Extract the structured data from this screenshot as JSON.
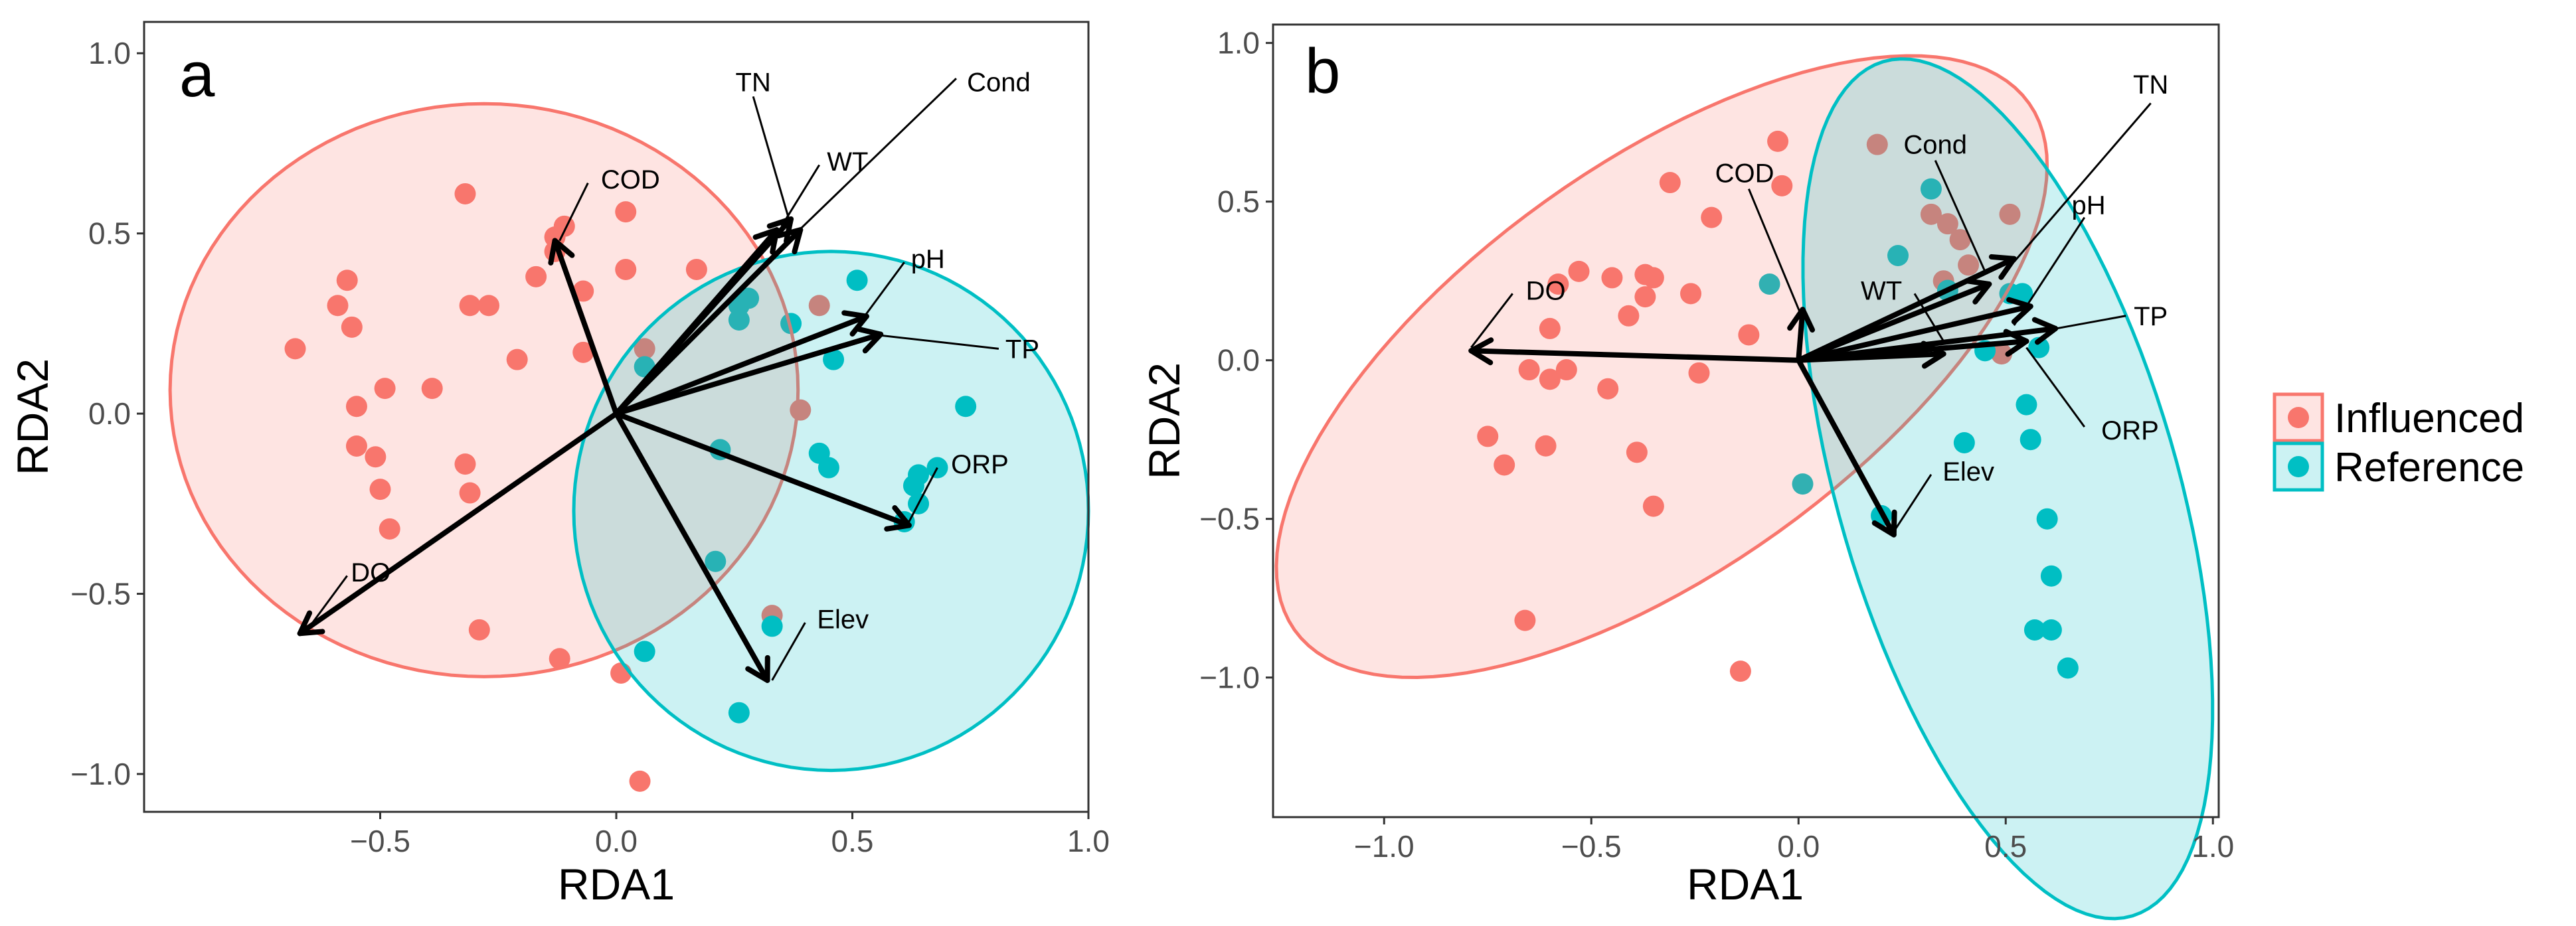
{
  "legend": {
    "items": [
      {
        "label": "Influenced",
        "color": "#F8766D"
      },
      {
        "label": "Reference",
        "color": "#00BFC4"
      }
    ]
  },
  "chart_data": [
    {
      "type": "scatter",
      "panel_label": "a",
      "xlabel": "RDA1",
      "ylabel": "RDA2",
      "xlim": [
        -1.0,
        1.0
      ],
      "ylim": [
        -1.105,
        1.087
      ],
      "grid": false,
      "xticks": [
        -0.5,
        0.0,
        0.5,
        1.0
      ],
      "xtick_labels": [
        "−0.5",
        "0.0",
        "0.5",
        "1.0"
      ],
      "yticks": [
        -1.0,
        -0.5,
        0.0,
        0.5,
        1.0
      ],
      "ytick_labels": [
        "−1.0",
        "−0.5",
        "0.0",
        "0.5",
        "1.0"
      ],
      "series": [
        {
          "name": "Influenced",
          "color": "#F8766D",
          "points": [
            [
              -0.68,
              0.18
            ],
            [
              -0.59,
              0.3
            ],
            [
              -0.57,
              0.37
            ],
            [
              -0.56,
              0.24
            ],
            [
              -0.55,
              0.02
            ],
            [
              -0.55,
              -0.09
            ],
            [
              -0.51,
              -0.12
            ],
            [
              -0.49,
              0.07
            ],
            [
              -0.5,
              -0.21
            ],
            [
              -0.48,
              -0.32
            ],
            [
              -0.39,
              0.07
            ],
            [
              -0.32,
              0.61
            ],
            [
              -0.32,
              -0.14
            ],
            [
              -0.31,
              0.3
            ],
            [
              -0.27,
              0.3
            ],
            [
              -0.31,
              -0.22
            ],
            [
              -0.29,
              -0.6
            ],
            [
              -0.21,
              0.15
            ],
            [
              -0.17,
              0.38
            ],
            [
              -0.13,
              0.49
            ],
            [
              -0.11,
              0.52
            ],
            [
              -0.13,
              0.45
            ],
            [
              -0.12,
              -0.68
            ],
            [
              -0.07,
              0.34
            ],
            [
              -0.07,
              0.17
            ],
            [
              0.02,
              0.56
            ],
            [
              0.02,
              0.4
            ],
            [
              0.01,
              -0.72
            ],
            [
              0.05,
              -1.02
            ],
            [
              0.06,
              0.18
            ],
            [
              0.17,
              0.4
            ],
            [
              0.43,
              0.3
            ],
            [
              0.39,
              0.01
            ],
            [
              0.33,
              -0.56
            ]
          ]
        },
        {
          "name": "Reference",
          "color": "#00BFC4",
          "points": [
            [
              0.06,
              0.13
            ],
            [
              0.06,
              -0.66
            ],
            [
              0.22,
              -0.1
            ],
            [
              0.21,
              -0.41
            ],
            [
              0.26,
              0.3
            ],
            [
              0.26,
              0.26
            ],
            [
              0.28,
              0.32
            ],
            [
              0.26,
              -0.83
            ],
            [
              0.37,
              0.25
            ],
            [
              0.33,
              -0.59
            ],
            [
              0.51,
              0.37
            ],
            [
              0.46,
              0.15
            ],
            [
              0.43,
              -0.11
            ],
            [
              0.45,
              -0.15
            ],
            [
              0.63,
              -0.2
            ],
            [
              0.64,
              -0.17
            ],
            [
              0.68,
              -0.15
            ],
            [
              0.64,
              -0.25
            ],
            [
              0.61,
              -0.3
            ],
            [
              0.74,
              0.02
            ]
          ]
        }
      ],
      "ellipses": [
        {
          "group": "Influenced",
          "color": "#F8766D",
          "center": [
            -0.28,
            0.065
          ],
          "a": 0.665,
          "b": 0.795,
          "angle_deg": 0
        },
        {
          "group": "Reference",
          "color": "#00BFC4",
          "center": [
            0.455,
            -0.27
          ],
          "a": 0.545,
          "b": 0.72,
          "angle_deg": 0
        }
      ],
      "arrows": [
        {
          "label": "TN",
          "tip": [
            0.37,
            0.54
          ],
          "label_pos": [
            0.29,
            0.92
          ],
          "leader": [
            [
              0.29,
              0.88
            ],
            [
              0.37,
              0.52
            ]
          ]
        },
        {
          "label": "WT",
          "tip": [
            0.34,
            0.51
          ],
          "label_pos": [
            0.49,
            0.7
          ],
          "leader": [
            [
              0.43,
              0.69
            ],
            [
              0.35,
              0.52
            ]
          ]
        },
        {
          "label": "Cond",
          "tip": [
            0.39,
            0.51
          ],
          "label_pos": [
            0.81,
            0.92
          ],
          "leader": [
            [
              0.72,
              0.93
            ],
            [
              0.38,
              0.5
            ]
          ]
        },
        {
          "label": "COD",
          "tip": [
            -0.13,
            0.48
          ],
          "label_pos": [
            0.03,
            0.65
          ],
          "leader": [
            [
              -0.06,
              0.64
            ],
            [
              -0.12,
              0.48
            ]
          ]
        },
        {
          "label": "pH",
          "tip": [
            0.53,
            0.27
          ],
          "label_pos": [
            0.66,
            0.43
          ],
          "leader": [
            [
              0.61,
              0.42
            ],
            [
              0.52,
              0.26
            ]
          ]
        },
        {
          "label": "TP",
          "tip": [
            0.56,
            0.22
          ],
          "label_pos": [
            0.86,
            0.18
          ],
          "leader": [
            [
              0.81,
              0.18
            ],
            [
              0.54,
              0.22
            ]
          ]
        },
        {
          "label": "ORP",
          "tip": [
            0.62,
            -0.31
          ],
          "label_pos": [
            0.77,
            -0.14
          ],
          "leader": [
            [
              0.68,
              -0.15
            ],
            [
              0.62,
              -0.3
            ]
          ]
        },
        {
          "label": "DO",
          "tip": [
            -0.67,
            -0.61
          ],
          "label_pos": [
            -0.52,
            -0.44
          ],
          "leader": [
            [
              -0.57,
              -0.45
            ],
            [
              -0.66,
              -0.61
            ]
          ]
        },
        {
          "label": "Elev",
          "tip": [
            0.32,
            -0.74
          ],
          "label_pos": [
            0.48,
            -0.57
          ],
          "leader": [
            [
              0.4,
              -0.58
            ],
            [
              0.33,
              -0.74
            ]
          ]
        }
      ]
    },
    {
      "type": "scatter",
      "panel_label": "b",
      "xlabel": "RDA1",
      "ylabel": "RDA2",
      "xlim": [
        -1.268,
        1.014
      ],
      "ylim": [
        -1.44,
        1.058
      ],
      "grid": false,
      "xticks": [
        -1.0,
        -0.5,
        0.0,
        0.5,
        1.0
      ],
      "xtick_labels": [
        "−1.0",
        "−0.5",
        "0.0",
        "0.5",
        "1.0"
      ],
      "yticks": [
        -1.0,
        -0.5,
        0.0,
        0.5,
        1.0
      ],
      "ytick_labels": [
        "−1.0",
        "−0.5",
        "0.0",
        "0.5",
        "1.0"
      ],
      "series": [
        {
          "name": "Influenced",
          "color": "#F8766D",
          "points": [
            [
              -0.05,
              0.69
            ],
            [
              0.19,
              0.68
            ],
            [
              -0.31,
              0.56
            ],
            [
              -0.04,
              0.55
            ],
            [
              -0.21,
              0.45
            ],
            [
              -0.53,
              0.28
            ],
            [
              -0.45,
              0.26
            ],
            [
              -0.58,
              0.24
            ],
            [
              -0.37,
              0.27
            ],
            [
              -0.35,
              0.26
            ],
            [
              -0.37,
              0.2
            ],
            [
              -0.26,
              0.21
            ],
            [
              -0.41,
              0.14
            ],
            [
              -0.6,
              0.1
            ],
            [
              -0.12,
              0.08
            ],
            [
              -0.65,
              -0.03
            ],
            [
              -0.6,
              -0.06
            ],
            [
              -0.56,
              -0.03
            ],
            [
              -0.24,
              -0.04
            ],
            [
              -0.46,
              -0.09
            ],
            [
              -0.75,
              -0.24
            ],
            [
              -0.71,
              -0.33
            ],
            [
              -0.61,
              -0.27
            ],
            [
              -0.39,
              -0.29
            ],
            [
              -0.35,
              -0.46
            ],
            [
              -0.66,
              -0.82
            ],
            [
              -0.14,
              -0.98
            ],
            [
              0.32,
              0.46
            ],
            [
              0.36,
              0.43
            ],
            [
              0.51,
              0.46
            ],
            [
              0.39,
              0.38
            ],
            [
              0.41,
              0.3
            ],
            [
              0.35,
              0.25
            ],
            [
              0.49,
              0.02
            ]
          ]
        },
        {
          "name": "Reference",
          "color": "#00BFC4",
          "points": [
            [
              -0.07,
              0.24
            ],
            [
              0.32,
              0.54
            ],
            [
              0.24,
              0.33
            ],
            [
              0.36,
              0.22
            ],
            [
              0.51,
              0.21
            ],
            [
              0.54,
              0.21
            ],
            [
              0.45,
              0.03
            ],
            [
              0.58,
              0.04
            ],
            [
              0.55,
              -0.14
            ],
            [
              0.56,
              -0.25
            ],
            [
              0.4,
              -0.26
            ],
            [
              0.01,
              -0.39
            ],
            [
              0.2,
              -0.49
            ],
            [
              0.6,
              -0.5
            ],
            [
              0.61,
              -0.68
            ],
            [
              0.57,
              -0.85
            ],
            [
              0.61,
              -0.85
            ],
            [
              0.65,
              -0.97
            ]
          ]
        }
      ],
      "ellipses": [
        {
          "group": "Influenced",
          "color": "#F8766D",
          "center": [
            -0.33,
            -0.02
          ],
          "a": 1.226,
          "b": 0.567,
          "angle_deg": 47.3
        },
        {
          "group": "Reference",
          "color": "#00BFC4",
          "center": [
            0.505,
            -0.405
          ],
          "a": 1.381,
          "b": 0.416,
          "angle_deg": -78.3
        }
      ],
      "arrows": [
        {
          "label": "TN",
          "tip": [
            0.52,
            0.32
          ],
          "label_pos": [
            0.85,
            0.87
          ],
          "leader": [
            [
              0.85,
              0.81
            ],
            [
              0.52,
              0.31
            ]
          ]
        },
        {
          "label": "Cond",
          "tip": [
            0.46,
            0.24
          ],
          "label_pos": [
            0.33,
            0.68
          ],
          "leader": [
            [
              0.33,
              0.63
            ],
            [
              0.45,
              0.28
            ]
          ]
        },
        {
          "label": "COD",
          "tip": [
            0.01,
            0.16
          ],
          "label_pos": [
            -0.13,
            0.59
          ],
          "leader": [
            [
              -0.12,
              0.54
            ],
            [
              0.01,
              0.13
            ]
          ]
        },
        {
          "label": "pH",
          "tip": [
            0.56,
            0.17
          ],
          "label_pos": [
            0.7,
            0.49
          ],
          "leader": [
            [
              0.69,
              0.45
            ],
            [
              0.52,
              0.11
            ]
          ]
        },
        {
          "label": "TP",
          "tip": [
            0.62,
            0.1
          ],
          "label_pos": [
            0.85,
            0.14
          ],
          "leader": [
            [
              0.79,
              0.14
            ],
            [
              0.58,
              0.09
            ]
          ]
        },
        {
          "label": "ORP",
          "tip": [
            0.55,
            0.06
          ],
          "label_pos": [
            0.8,
            -0.22
          ],
          "leader": [
            [
              0.69,
              -0.21
            ],
            [
              0.55,
              0.04
            ]
          ]
        },
        {
          "label": "WT",
          "tip": [
            0.35,
            0.02
          ],
          "label_pos": [
            0.2,
            0.22
          ],
          "leader": [
            [
              0.28,
              0.21
            ],
            [
              0.35,
              0.06
            ]
          ]
        },
        {
          "label": "DO",
          "tip": [
            -0.79,
            0.03
          ],
          "label_pos": [
            -0.61,
            0.22
          ],
          "leader": [
            [
              -0.69,
              0.21
            ],
            [
              -0.79,
              0.04
            ]
          ]
        },
        {
          "label": "Elev",
          "tip": [
            0.23,
            -0.55
          ],
          "label_pos": [
            0.41,
            -0.35
          ],
          "leader": [
            [
              0.32,
              -0.36
            ],
            [
              0.23,
              -0.54
            ]
          ]
        }
      ]
    }
  ]
}
